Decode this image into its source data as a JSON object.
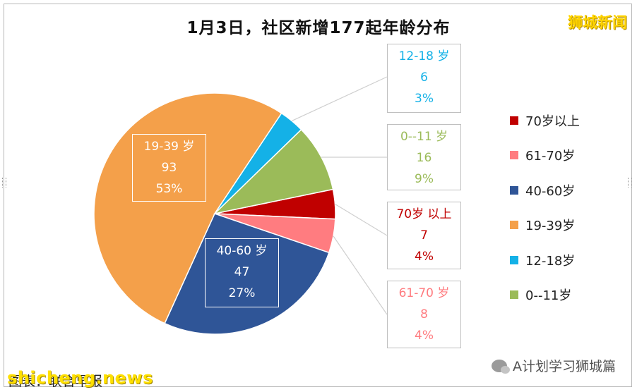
{
  "watermark": "狮城新闻",
  "footer": {
    "source": "图表：联合早报",
    "site": "shicheng.news",
    "wechat": "A计划学习狮城篇"
  },
  "colors": {
    "70岁以上": "#c00000",
    "61-70岁": "#ff7c80",
    "40-60岁": "#2f5597",
    "19-39岁": "#f4a04a",
    "12-18岁": "#14b1e7",
    "0--11岁": "#9bbb59"
  },
  "chart_data": {
    "type": "pie",
    "title": "1月3日，社区新增177起年龄分布",
    "slices": [
      {
        "name": "70岁以上",
        "label": "70岁 以上",
        "value": 7,
        "percent": "4%"
      },
      {
        "name": "61-70岁",
        "label": "61-70 岁",
        "value": 8,
        "percent": "4%"
      },
      {
        "name": "40-60岁",
        "label": "40-60 岁",
        "value": 47,
        "percent": "27%"
      },
      {
        "name": "19-39岁",
        "label": "19-39 岁",
        "value": 93,
        "percent": "53%"
      },
      {
        "name": "12-18岁",
        "label": "12-18 岁",
        "value": 6,
        "percent": "3%"
      },
      {
        "name": "0--11岁",
        "label": "0--11 岁",
        "value": 16,
        "percent": "9%"
      }
    ],
    "legend": [
      "70岁以上",
      "61-70岁",
      "40-60岁",
      "19-39岁",
      "12-18岁",
      "0--11岁"
    ],
    "legend_position": "right"
  }
}
